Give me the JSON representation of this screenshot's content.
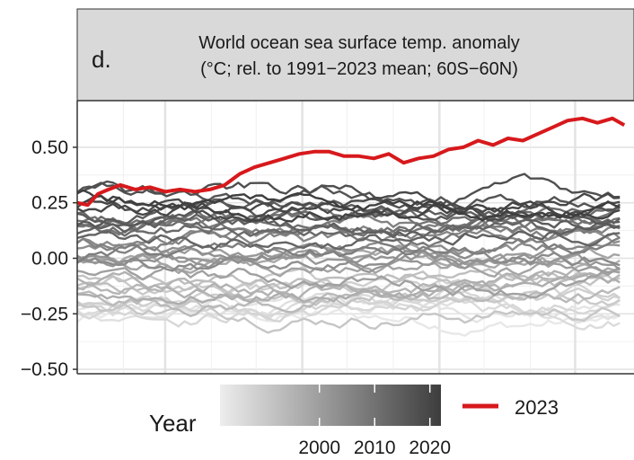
{
  "chart_data": {
    "type": "line",
    "panel_label": "d.",
    "title": "World ocean sea surface temp. anomaly",
    "subtitle": "(°C; rel. to 1991−2023 mean; 60S−60N)",
    "xlabel": "",
    "ylabel": "",
    "ylim": [
      -0.52,
      0.71
    ],
    "y_ticks": [
      {
        "value": 0.5,
        "label": "0.50"
      },
      {
        "value": 0.25,
        "label": "0.25"
      },
      {
        "value": 0.0,
        "label": "0.00"
      },
      {
        "value": -0.25,
        "label": "−0.25"
      },
      {
        "value": -0.5,
        "label": "−0.50"
      }
    ],
    "x_axis": "day of year (Jan 1 – Dec 31), unlabeled",
    "grid": true,
    "legend": {
      "colorbar_title": "Year",
      "colorbar_ticks": [
        "2000",
        "2010",
        "2020"
      ],
      "colorbar_range": [
        1982,
        2022
      ],
      "highlight_label": "2023",
      "highlight_color": "#d7191c",
      "placement": "bottom"
    },
    "highlight_series": {
      "name": "2023",
      "color": "#d7191c",
      "x": [
        1,
        8,
        15,
        22,
        30,
        40,
        50,
        60,
        70,
        80,
        90,
        100,
        110,
        120,
        130,
        140,
        150,
        160,
        170,
        180,
        190,
        200,
        210,
        220,
        230,
        240,
        250,
        260,
        270,
        280,
        290,
        300,
        310,
        320,
        330,
        340,
        350,
        360,
        368
      ],
      "values": [
        0.25,
        0.24,
        0.29,
        0.31,
        0.33,
        0.31,
        0.32,
        0.3,
        0.31,
        0.3,
        0.31,
        0.33,
        0.38,
        0.41,
        0.43,
        0.45,
        0.47,
        0.48,
        0.48,
        0.46,
        0.46,
        0.45,
        0.47,
        0.43,
        0.45,
        0.46,
        0.49,
        0.5,
        0.53,
        0.51,
        0.54,
        0.53,
        0.56,
        0.59,
        0.62,
        0.63,
        0.61,
        0.63,
        0.6
      ]
    },
    "background_series_count": 41,
    "background_series_years": [
      1982,
      2022
    ],
    "background_series_note": "one line per year 1982–2022, shaded light grey (early) to dark grey (late)"
  }
}
